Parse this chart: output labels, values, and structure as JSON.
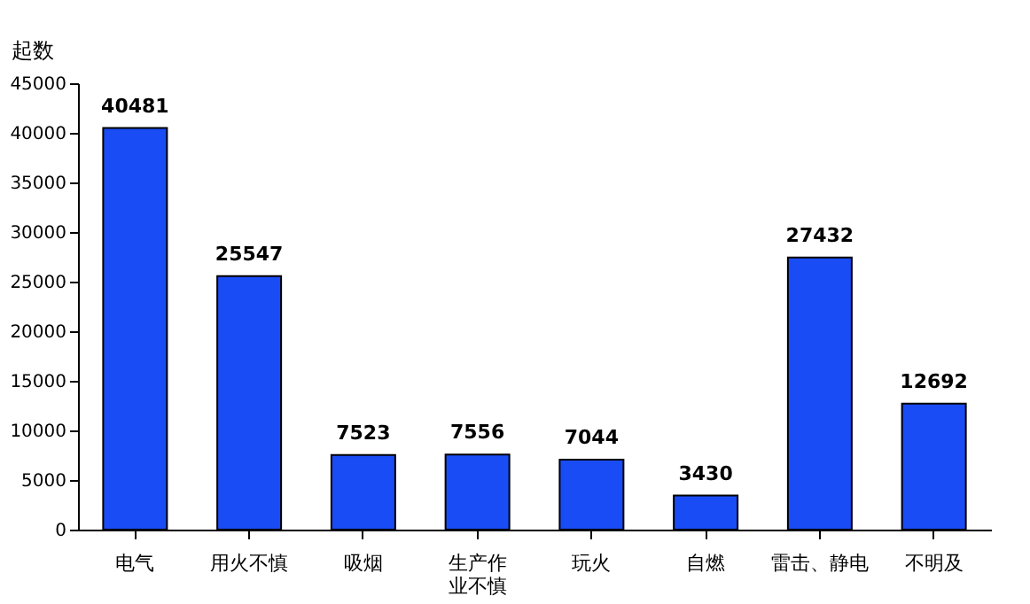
{
  "chart_data": {
    "type": "bar",
    "ylabel": "起数",
    "categories": [
      "电气",
      "用火不慎",
      "吸烟",
      "生产作业不慎",
      "玩火",
      "自燃",
      "雷击、静电",
      "不明及"
    ],
    "values": [
      40481,
      25547,
      7523,
      7556,
      7044,
      3430,
      27432,
      12692
    ],
    "color": "#1a4cf5",
    "ylim": [
      0,
      45000
    ],
    "yticks": [
      0,
      5000,
      10000,
      15000,
      20000,
      25000,
      30000,
      35000,
      40000,
      45000
    ],
    "data_labels": true,
    "grid": false
  }
}
